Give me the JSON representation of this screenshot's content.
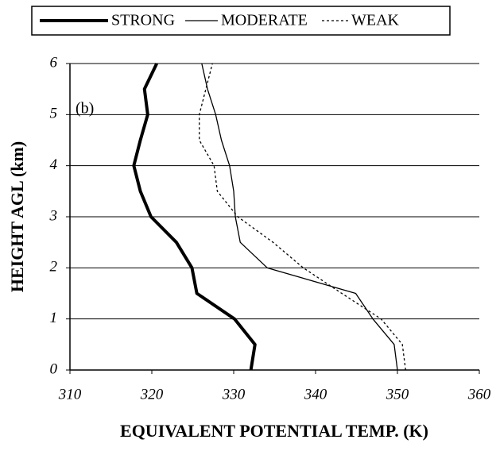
{
  "chart_data": {
    "type": "line",
    "xlabel": "EQUIVALENT POTENTIAL TEMP. (K)",
    "ylabel": "HEIGHT AGL (km)",
    "annotation": "(b)",
    "y": [
      0,
      0.5,
      1,
      1.5,
      2,
      2.5,
      3,
      3.5,
      4,
      4.5,
      5,
      5.5,
      6
    ],
    "series": [
      {
        "name": "STRONG",
        "color": "#000000",
        "style": "thick",
        "values": [
          332.1,
          332.6,
          330.1,
          325.5,
          324.9,
          323.0,
          319.9,
          318.6,
          317.8,
          318.6,
          319.5,
          319.1,
          320.6
        ]
      },
      {
        "name": "MODERATE",
        "color": "#000000",
        "style": "solid",
        "values": [
          350.0,
          349.6,
          347.0,
          344.9,
          334.1,
          330.8,
          330.2,
          330.0,
          329.5,
          328.5,
          327.8,
          326.8,
          326.1
        ]
      },
      {
        "name": "WEAK",
        "color": "#000000",
        "style": "dotted",
        "values": [
          351.0,
          350.6,
          348.0,
          343.2,
          338.5,
          334.8,
          330.5,
          328.0,
          327.6,
          325.8,
          325.8,
          326.6,
          327.4
        ]
      }
    ],
    "xlim": [
      310,
      360
    ],
    "xticks": [
      310,
      320,
      330,
      340,
      350,
      360
    ],
    "ylim": [
      0,
      6
    ],
    "yticks": [
      0,
      1,
      2,
      3,
      4,
      5,
      6
    ],
    "grid": true,
    "legend": "top"
  }
}
